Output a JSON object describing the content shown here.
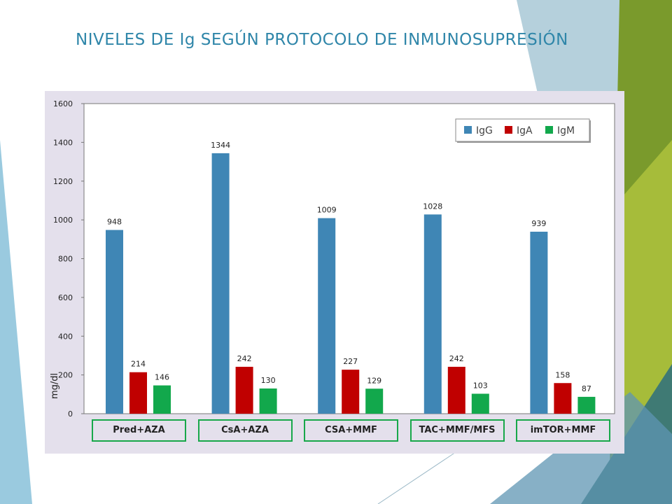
{
  "slide": {
    "title": "NIVELES DE Ig SEGÚN PROTOCOLO DE INMUNOSUPRESIÓN"
  },
  "colors": {
    "title": "#2f86a9",
    "IgG": "#3f86b5",
    "IgA": "#c00000",
    "IgM": "#12a84c",
    "panel": "#e4e0ec",
    "category_border": "#18a84a"
  },
  "chart_data": {
    "type": "bar",
    "categories": [
      "Pred+AZA",
      "CsA+AZA",
      "CSA+MMF",
      "TAC+MMF/MFS",
      "imTOR+MMF"
    ],
    "series": [
      {
        "name": "IgG",
        "values": [
          948,
          1344,
          1009,
          1028,
          939
        ]
      },
      {
        "name": "IgA",
        "values": [
          214,
          242,
          227,
          242,
          158
        ]
      },
      {
        "name": "IgM",
        "values": [
          146,
          130,
          129,
          103,
          87
        ]
      }
    ],
    "ylabel": "mg/dl",
    "ylim": [
      0,
      1600
    ],
    "yticks": [
      0,
      200,
      400,
      600,
      800,
      1000,
      1200,
      1400,
      1600
    ],
    "legend_position": "top-right",
    "grid": false,
    "data_labels": true
  }
}
